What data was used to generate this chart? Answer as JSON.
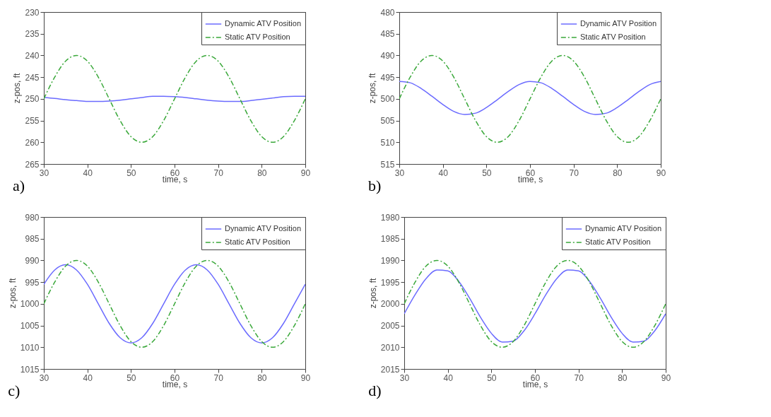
{
  "chart_data": [
    {
      "type": "line",
      "xlabel": "time, s",
      "ylabel": "z-pos, ft",
      "annotations": [
        "a)"
      ],
      "legend": "top right",
      "grid": false,
      "marker": "none",
      "x": [
        30,
        32.5,
        35,
        37.5,
        40,
        42.5,
        45,
        47.5,
        50,
        52.5,
        55,
        57.5,
        60,
        62.5,
        65,
        67.5,
        70,
        72.5,
        75,
        77.5,
        80,
        82.5,
        85,
        87.5,
        90
      ],
      "xlim": [
        30,
        90
      ],
      "xticks": [
        30,
        40,
        50,
        60,
        70,
        80,
        90
      ],
      "ylim": [
        265,
        230
      ],
      "yticks": [
        230,
        235,
        240,
        245,
        250,
        255,
        260,
        265
      ],
      "series": [
        {
          "name": "Dynamic ATV Position",
          "color": "#6b6bff",
          "line_style": "solid",
          "values": [
            249.7,
            249.9,
            250.2,
            250.4,
            250.6,
            250.6,
            250.5,
            250.3,
            250.0,
            249.7,
            249.4,
            249.4,
            249.5,
            249.7,
            250.0,
            250.3,
            250.5,
            250.6,
            250.6,
            250.4,
            250.1,
            249.8,
            249.5,
            249.4,
            249.4
          ]
        },
        {
          "name": "Static ATV Position",
          "color": "#3aa83a",
          "line_style": "dashed",
          "values": [
            250,
            245,
            241.3,
            240,
            241.3,
            245,
            250,
            255,
            258.7,
            260,
            258.7,
            255,
            250,
            245,
            241.3,
            240,
            241.3,
            245,
            250,
            255,
            258.7,
            260,
            258.7,
            255,
            250
          ]
        }
      ]
    },
    {
      "type": "line",
      "xlabel": "time, s",
      "ylabel": "z-pos, ft",
      "annotations": [
        "b)"
      ],
      "legend": "top right",
      "grid": false,
      "marker": "none",
      "x": [
        30,
        32.5,
        35,
        37.5,
        40,
        42.5,
        45,
        47.5,
        50,
        52.5,
        55,
        57.5,
        60,
        62.5,
        65,
        67.5,
        70,
        72.5,
        75,
        77.5,
        80,
        82.5,
        85,
        87.5,
        90
      ],
      "xlim": [
        30,
        90
      ],
      "xticks": [
        30,
        40,
        50,
        60,
        70,
        80,
        90
      ],
      "ylim": [
        515,
        480
      ],
      "yticks": [
        480,
        485,
        490,
        495,
        500,
        505,
        510,
        515
      ],
      "series": [
        {
          "name": "Dynamic ATV Position",
          "color": "#6b6bff",
          "line_style": "solid",
          "values": [
            496.0,
            496.3,
            497.6,
            499.4,
            501.3,
            502.9,
            503.6,
            503.3,
            502.0,
            500.2,
            498.3,
            496.7,
            496.0,
            496.3,
            497.6,
            499.4,
            501.3,
            502.9,
            503.6,
            503.3,
            502.0,
            500.2,
            498.3,
            496.7,
            496.0
          ]
        },
        {
          "name": "Static ATV Position",
          "color": "#3aa83a",
          "line_style": "dashed",
          "values": [
            500,
            495,
            491.3,
            490,
            491.3,
            495,
            500,
            505,
            508.7,
            510,
            508.7,
            505,
            500,
            495,
            491.3,
            490,
            491.3,
            495,
            500,
            505,
            508.7,
            510,
            508.7,
            505,
            500
          ]
        }
      ]
    },
    {
      "type": "line",
      "xlabel": "time, s",
      "ylabel": "z-pos, ft",
      "annotations": [
        "c)"
      ],
      "legend": "top right",
      "grid": false,
      "marker": "none",
      "x": [
        30,
        32.5,
        35,
        37.5,
        40,
        42.5,
        45,
        47.5,
        50,
        52.5,
        55,
        57.5,
        60,
        62.5,
        65,
        67.5,
        70,
        72.5,
        75,
        77.5,
        80,
        82.5,
        85,
        87.5,
        90
      ],
      "xlim": [
        30,
        90
      ],
      "xticks": [
        30,
        40,
        50,
        60,
        70,
        80,
        90
      ],
      "ylim": [
        1015,
        980
      ],
      "yticks": [
        980,
        985,
        990,
        995,
        1000,
        1005,
        1010,
        1015
      ],
      "series": [
        {
          "name": "Dynamic ATV Position",
          "color": "#6b6bff",
          "line_style": "solid",
          "values": [
            995.5,
            992.2,
            991,
            992.2,
            995.5,
            1000,
            1004.5,
            1007.8,
            1009,
            1007.8,
            1004.5,
            1000,
            995.5,
            992.2,
            991,
            992.2,
            995.5,
            1000,
            1004.5,
            1007.8,
            1009,
            1007.8,
            1004.5,
            1000,
            995.5
          ]
        },
        {
          "name": "Static ATV Position",
          "color": "#3aa83a",
          "line_style": "dashed",
          "values": [
            1000,
            995,
            991.3,
            990,
            991.3,
            995,
            1000,
            1005,
            1008.7,
            1010,
            1008.7,
            1005,
            1000,
            995,
            991.3,
            990,
            991.3,
            995,
            1000,
            1005,
            1008.7,
            1010,
            1008.7,
            1005,
            1000
          ]
        }
      ]
    },
    {
      "type": "line",
      "xlabel": "time, s",
      "ylabel": "z-pos, ft",
      "annotations": [
        "d)"
      ],
      "legend": "top right",
      "grid": false,
      "marker": "none",
      "x": [
        30,
        32.5,
        35,
        37.5,
        40,
        42.5,
        45,
        47.5,
        50,
        52.5,
        55,
        57.5,
        60,
        62.5,
        65,
        67.5,
        70,
        72.5,
        75,
        77.5,
        80,
        82.5,
        85,
        87.5,
        90
      ],
      "xlim": [
        30,
        90
      ],
      "xticks": [
        30,
        40,
        50,
        60,
        70,
        80,
        90
      ],
      "ylim": [
        2015,
        1980
      ],
      "yticks": [
        1980,
        1985,
        1990,
        1995,
        2000,
        2005,
        2010,
        2015
      ],
      "series": [
        {
          "name": "Dynamic ATV Position",
          "color": "#6b6bff",
          "line_style": "solid",
          "values": [
            2002.3,
            1997.9,
            1994.2,
            1992.2,
            1992.4,
            1994.8,
            1998.7,
            2003.1,
            2006.8,
            2008.8,
            2008.6,
            2006.2,
            2002.3,
            1997.9,
            1994.2,
            1992.2,
            1992.4,
            1994.8,
            1998.7,
            2003.1,
            2006.8,
            2008.8,
            2008.6,
            2006.2,
            2002.3
          ]
        },
        {
          "name": "Static ATV Position",
          "color": "#3aa83a",
          "line_style": "dashed",
          "values": [
            2000,
            1995,
            1991.3,
            1990,
            1991.3,
            1995,
            2000,
            2005,
            2008.7,
            2010,
            2008.7,
            2005,
            2000,
            1995,
            1991.3,
            1990,
            1991.3,
            1995,
            2000,
            2005,
            2008.7,
            2010,
            2008.7,
            2005,
            2000
          ]
        }
      ]
    }
  ]
}
